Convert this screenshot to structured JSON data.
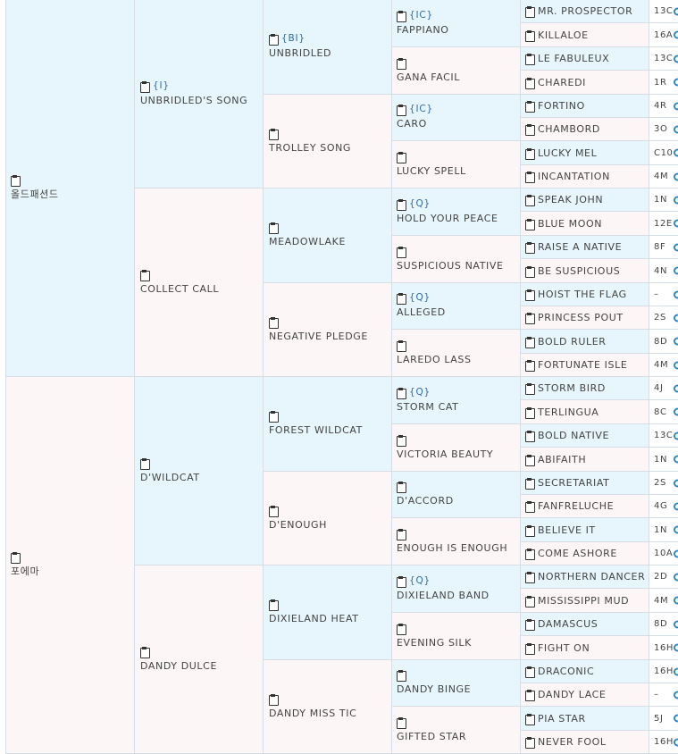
{
  "pedigree": {
    "sire": {
      "name": "올드패션드",
      "sire": {
        "tag": "{I}",
        "name": "UNBRIDLED'S SONG",
        "sire": {
          "tag": "{BI}",
          "name": "UNBRIDLED",
          "sire": {
            "tag": "{IC}",
            "name": "FAPPIANO",
            "sire": "MR. PROSPECTOR",
            "sire_code": "13C",
            "dam": "KILLALOE",
            "dam_code": "16A"
          },
          "dam": {
            "tag": "",
            "name": "GANA FACIL",
            "sire": "LE FABULEUX",
            "sire_code": "13C",
            "dam": "CHAREDI",
            "dam_code": "1R"
          }
        },
        "dam": {
          "tag": "",
          "name": "TROLLEY SONG",
          "sire": {
            "tag": "{IC}",
            "name": "CARO",
            "sire": "FORTINO",
            "sire_code": "4R",
            "dam": "CHAMBORD",
            "dam_code": "3O"
          },
          "dam": {
            "tag": "",
            "name": "LUCKY SPELL",
            "sire": "LUCKY MEL",
            "sire_code": "C10",
            "dam": "INCANTATION",
            "dam_code": "4M"
          }
        }
      },
      "dam": {
        "tag": "",
        "name": "COLLECT CALL",
        "sire": {
          "tag": "",
          "name": "MEADOWLAKE",
          "sire": {
            "tag": "{Q}",
            "name": "HOLD YOUR PEACE",
            "sire": "SPEAK JOHN",
            "sire_code": "1N",
            "dam": "BLUE MOON",
            "dam_code": "12E"
          },
          "dam": {
            "tag": "",
            "name": "SUSPICIOUS NATIVE",
            "sire": "RAISE A NATIVE",
            "sire_code": "8F",
            "dam": "BE SUSPICIOUS",
            "dam_code": "4N"
          }
        },
        "dam": {
          "tag": "",
          "name": "NEGATIVE PLEDGE",
          "sire": {
            "tag": "{Q}",
            "name": "ALLEGED",
            "sire": "HOIST THE FLAG",
            "sire_code": "–",
            "dam": "PRINCESS POUT",
            "dam_code": "2S"
          },
          "dam": {
            "tag": "",
            "name": "LAREDO LASS",
            "sire": "BOLD RULER",
            "sire_code": "8D",
            "dam": "FORTUNATE ISLE",
            "dam_code": "4M"
          }
        }
      }
    },
    "dam": {
      "name": "포에마",
      "sire": {
        "tag": "",
        "name": "D'WILDCAT",
        "sire": {
          "tag": "",
          "name": "FOREST WILDCAT",
          "sire": {
            "tag": "{Q}",
            "name": "STORM CAT",
            "sire": "STORM BIRD",
            "sire_code": "4J",
            "dam": "TERLINGUA",
            "dam_code": "8C"
          },
          "dam": {
            "tag": "",
            "name": "VICTORIA BEAUTY",
            "sire": "BOLD NATIVE",
            "sire_code": "13C",
            "dam": "ABIFAITH",
            "dam_code": "1N"
          }
        },
        "dam": {
          "tag": "",
          "name": "D'ENOUGH",
          "sire": {
            "tag": "",
            "name": "D'ACCORD",
            "sire": "SECRETARIAT",
            "sire_code": "2S",
            "dam": "FANFRELUCHE",
            "dam_code": "4G"
          },
          "dam": {
            "tag": "",
            "name": "ENOUGH IS ENOUGH",
            "sire": "BELIEVE IT",
            "sire_code": "1N",
            "dam": "COME ASHORE",
            "dam_code": "10A"
          }
        }
      },
      "dam": {
        "tag": "",
        "name": "DANDY DULCE",
        "sire": {
          "tag": "",
          "name": "DIXIELAND HEAT",
          "sire": {
            "tag": "{Q}",
            "name": "DIXIELAND BAND",
            "sire": "NORTHERN DANCER",
            "sire_code": "2D",
            "dam": "MISSISSIPPI MUD",
            "dam_code": "4M"
          },
          "dam": {
            "tag": "",
            "name": "EVENING SILK",
            "sire": "DAMASCUS",
            "sire_code": "8D",
            "dam": "FIGHT ON",
            "dam_code": "16H"
          }
        },
        "dam": {
          "tag": "",
          "name": "DANDY MISS TIC",
          "sire": {
            "tag": "",
            "name": "DANDY BINGE",
            "sire": "DRACONIC",
            "sire_code": "16H",
            "dam": "DANDY LACE",
            "dam_code": "–"
          },
          "dam": {
            "tag": "",
            "name": "GIFTED STAR",
            "sire": "PIA STAR",
            "sire_code": "5J",
            "dam": "NEVER FOOL",
            "dam_code": "16H"
          }
        }
      }
    }
  },
  "colors": {
    "sire_bg": "#e7f6fc",
    "dam_bg": "#fcf6f6",
    "tag": "#2e6aa6",
    "border": "#d6dde3"
  },
  "icons": {
    "note": "clipboard-icon",
    "info": "circle-icon"
  }
}
